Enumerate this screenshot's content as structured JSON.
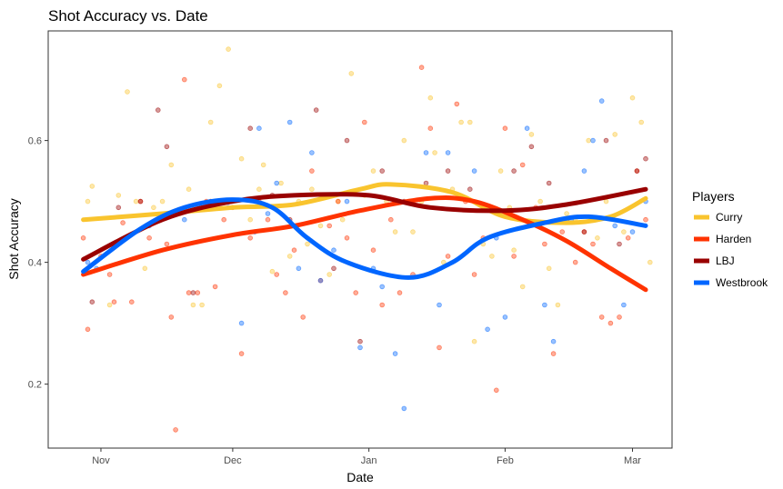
{
  "chart_data": {
    "type": "scatter",
    "title": "Shot Accuracy vs. Date",
    "xlabel": "Date",
    "ylabel": "Shot Accuracy",
    "x_tick_labels": [
      "Nov",
      "Dec",
      "Jan",
      "Feb",
      "Mar"
    ],
    "x_ticks": [
      "2015-11-01",
      "2015-12-01",
      "2016-01-01",
      "2016-02-01",
      "2016-03-01"
    ],
    "xlim": [
      "2015-10-20",
      "2016-03-10"
    ],
    "y_ticks": [
      0.2,
      0.4,
      0.6
    ],
    "y_tick_labels": [
      "0.2",
      "0.4",
      "0.6"
    ],
    "ylim": [
      0.095,
      0.78
    ],
    "grid": false,
    "legend": {
      "title": "Players",
      "position": "right"
    },
    "series": [
      {
        "name": "Curry",
        "color": "#F9C42E",
        "smooth": [
          [
            "2015-10-28",
            0.47
          ],
          [
            "2015-11-15",
            0.48
          ],
          [
            "2015-12-01",
            0.49
          ],
          [
            "2015-12-15",
            0.495
          ],
          [
            "2015-12-30",
            0.52
          ],
          [
            "2016-01-06",
            0.528
          ],
          [
            "2016-01-20",
            0.515
          ],
          [
            "2016-02-01",
            0.475
          ],
          [
            "2016-02-15",
            0.465
          ],
          [
            "2016-02-25",
            0.475
          ],
          [
            "2016-03-04",
            0.505
          ]
        ],
        "points": [
          [
            "2015-10-29",
            0.5
          ],
          [
            "2015-10-30",
            0.525
          ],
          [
            "2015-11-03",
            0.33
          ],
          [
            "2015-11-05",
            0.51
          ],
          [
            "2015-11-07",
            0.68
          ],
          [
            "2015-11-09",
            0.5
          ],
          [
            "2015-11-11",
            0.39
          ],
          [
            "2015-11-13",
            0.49
          ],
          [
            "2015-11-15",
            0.5
          ],
          [
            "2015-11-17",
            0.56
          ],
          [
            "2015-11-19",
            0.48
          ],
          [
            "2015-11-21",
            0.52
          ],
          [
            "2015-11-22",
            0.33
          ],
          [
            "2015-11-24",
            0.33
          ],
          [
            "2015-11-26",
            0.63
          ],
          [
            "2015-11-28",
            0.69
          ],
          [
            "2015-11-30",
            0.75
          ],
          [
            "2015-12-03",
            0.57
          ],
          [
            "2015-12-05",
            0.47
          ],
          [
            "2015-12-07",
            0.52
          ],
          [
            "2015-12-08",
            0.56
          ],
          [
            "2015-12-10",
            0.385
          ],
          [
            "2015-12-12",
            0.53
          ],
          [
            "2015-12-14",
            0.41
          ],
          [
            "2015-12-16",
            0.5
          ],
          [
            "2015-12-18",
            0.43
          ],
          [
            "2015-12-19",
            0.52
          ],
          [
            "2015-12-21",
            0.46
          ],
          [
            "2015-12-23",
            0.38
          ],
          [
            "2015-12-25",
            0.5
          ],
          [
            "2015-12-26",
            0.47
          ],
          [
            "2015-12-28",
            0.71
          ],
          [
            "2015-12-31",
            0.51
          ],
          [
            "2016-01-02",
            0.55
          ],
          [
            "2016-01-05",
            0.5
          ],
          [
            "2016-01-07",
            0.45
          ],
          [
            "2016-01-09",
            0.6
          ],
          [
            "2016-01-11",
            0.45
          ],
          [
            "2016-01-13",
            0.5
          ],
          [
            "2016-01-15",
            0.67
          ],
          [
            "2016-01-16",
            0.58
          ],
          [
            "2016-01-18",
            0.4
          ],
          [
            "2016-01-20",
            0.52
          ],
          [
            "2016-01-22",
            0.63
          ],
          [
            "2016-01-24",
            0.63
          ],
          [
            "2016-01-25",
            0.27
          ],
          [
            "2016-01-27",
            0.43
          ],
          [
            "2016-01-29",
            0.41
          ],
          [
            "2016-01-31",
            0.55
          ],
          [
            "2016-02-02",
            0.49
          ],
          [
            "2016-02-03",
            0.42
          ],
          [
            "2016-02-05",
            0.36
          ],
          [
            "2016-02-07",
            0.61
          ],
          [
            "2016-02-09",
            0.5
          ],
          [
            "2016-02-11",
            0.39
          ],
          [
            "2016-02-13",
            0.33
          ],
          [
            "2016-02-15",
            0.48
          ],
          [
            "2016-02-17",
            0.47
          ],
          [
            "2016-02-20",
            0.6
          ],
          [
            "2016-02-22",
            0.44
          ],
          [
            "2016-02-24",
            0.5
          ],
          [
            "2016-02-26",
            0.61
          ],
          [
            "2016-02-28",
            0.45
          ],
          [
            "2016-03-01",
            0.67
          ],
          [
            "2016-03-03",
            0.63
          ],
          [
            "2016-03-05",
            0.4
          ]
        ]
      },
      {
        "name": "Harden",
        "color": "#FF3300",
        "smooth": [
          [
            "2015-10-28",
            0.38
          ],
          [
            "2015-11-15",
            0.42
          ],
          [
            "2015-12-01",
            0.445
          ],
          [
            "2015-12-15",
            0.46
          ],
          [
            "2015-12-30",
            0.485
          ],
          [
            "2016-01-15",
            0.505
          ],
          [
            "2016-01-25",
            0.5
          ],
          [
            "2016-02-05",
            0.47
          ],
          [
            "2016-02-15",
            0.435
          ],
          [
            "2016-02-25",
            0.39
          ],
          [
            "2016-03-04",
            0.355
          ]
        ],
        "points": [
          [
            "2015-10-28",
            0.44
          ],
          [
            "2015-10-29",
            0.29
          ],
          [
            "2015-11-01",
            0.41
          ],
          [
            "2015-11-03",
            0.38
          ],
          [
            "2015-11-04",
            0.335
          ],
          [
            "2015-11-06",
            0.465
          ],
          [
            "2015-11-08",
            0.335
          ],
          [
            "2015-11-10",
            0.5
          ],
          [
            "2015-11-12",
            0.44
          ],
          [
            "2015-11-16",
            0.43
          ],
          [
            "2015-11-17",
            0.31
          ],
          [
            "2015-11-18",
            0.125
          ],
          [
            "2015-11-20",
            0.7
          ],
          [
            "2015-11-21",
            0.35
          ],
          [
            "2015-11-23",
            0.35
          ],
          [
            "2015-11-25",
            0.5
          ],
          [
            "2015-11-27",
            0.36
          ],
          [
            "2015-11-29",
            0.47
          ],
          [
            "2015-12-01",
            0.49
          ],
          [
            "2015-12-03",
            0.25
          ],
          [
            "2015-12-05",
            0.44
          ],
          [
            "2015-12-07",
            0.5
          ],
          [
            "2015-12-09",
            0.47
          ],
          [
            "2015-12-11",
            0.38
          ],
          [
            "2015-12-13",
            0.35
          ],
          [
            "2015-12-15",
            0.42
          ],
          [
            "2015-12-17",
            0.31
          ],
          [
            "2015-12-19",
            0.55
          ],
          [
            "2015-12-21",
            0.37
          ],
          [
            "2015-12-23",
            0.46
          ],
          [
            "2015-12-25",
            0.5
          ],
          [
            "2015-12-27",
            0.44
          ],
          [
            "2015-12-29",
            0.35
          ],
          [
            "2015-12-31",
            0.63
          ],
          [
            "2016-01-02",
            0.42
          ],
          [
            "2016-01-04",
            0.33
          ],
          [
            "2016-01-06",
            0.47
          ],
          [
            "2016-01-08",
            0.35
          ],
          [
            "2016-01-11",
            0.38
          ],
          [
            "2016-01-13",
            0.72
          ],
          [
            "2016-01-15",
            0.62
          ],
          [
            "2016-01-17",
            0.26
          ],
          [
            "2016-01-19",
            0.41
          ],
          [
            "2016-01-21",
            0.66
          ],
          [
            "2016-01-23",
            0.5
          ],
          [
            "2016-01-25",
            0.38
          ],
          [
            "2016-01-27",
            0.44
          ],
          [
            "2016-01-30",
            0.19
          ],
          [
            "2016-02-01",
            0.62
          ],
          [
            "2016-02-03",
            0.41
          ],
          [
            "2016-02-05",
            0.56
          ],
          [
            "2016-02-08",
            0.49
          ],
          [
            "2016-02-10",
            0.43
          ],
          [
            "2016-02-12",
            0.25
          ],
          [
            "2016-02-14",
            0.45
          ],
          [
            "2016-02-17",
            0.4
          ],
          [
            "2016-02-19",
            0.45
          ],
          [
            "2016-02-21",
            0.43
          ],
          [
            "2016-02-23",
            0.31
          ],
          [
            "2016-02-25",
            0.3
          ],
          [
            "2016-02-27",
            0.31
          ],
          [
            "2016-02-29",
            0.44
          ],
          [
            "2016-03-02",
            0.55
          ],
          [
            "2016-03-04",
            0.47
          ]
        ]
      },
      {
        "name": "LBJ",
        "color": "#990000",
        "smooth": [
          [
            "2015-10-28",
            0.405
          ],
          [
            "2015-11-15",
            0.47
          ],
          [
            "2015-12-01",
            0.5
          ],
          [
            "2015-12-15",
            0.51
          ],
          [
            "2016-01-01",
            0.51
          ],
          [
            "2016-01-15",
            0.49
          ],
          [
            "2016-02-01",
            0.485
          ],
          [
            "2016-02-15",
            0.495
          ],
          [
            "2016-03-04",
            0.52
          ]
        ],
        "points": [
          [
            "2015-10-30",
            0.335
          ],
          [
            "2015-11-05",
            0.49
          ],
          [
            "2015-11-10",
            0.5
          ],
          [
            "2015-11-14",
            0.65
          ],
          [
            "2015-11-16",
            0.59
          ],
          [
            "2015-11-22",
            0.35
          ],
          [
            "2015-11-26",
            0.5
          ],
          [
            "2015-12-05",
            0.62
          ],
          [
            "2015-12-10",
            0.51
          ],
          [
            "2015-12-14",
            0.47
          ],
          [
            "2015-12-20",
            0.65
          ],
          [
            "2015-12-24",
            0.39
          ],
          [
            "2015-12-27",
            0.6
          ],
          [
            "2015-12-30",
            0.27
          ],
          [
            "2016-01-04",
            0.55
          ],
          [
            "2016-01-09",
            0.5
          ],
          [
            "2016-01-14",
            0.53
          ],
          [
            "2016-01-19",
            0.55
          ],
          [
            "2016-01-24",
            0.52
          ],
          [
            "2016-01-29",
            0.49
          ],
          [
            "2016-02-03",
            0.55
          ],
          [
            "2016-02-07",
            0.59
          ],
          [
            "2016-02-11",
            0.53
          ],
          [
            "2016-02-15",
            0.47
          ],
          [
            "2016-02-19",
            0.45
          ],
          [
            "2016-02-24",
            0.6
          ],
          [
            "2016-02-27",
            0.43
          ],
          [
            "2016-03-02",
            0.55
          ],
          [
            "2016-03-04",
            0.57
          ]
        ]
      },
      {
        "name": "Westbrook",
        "color": "#0066FF",
        "smooth": [
          [
            "2015-10-28",
            0.385
          ],
          [
            "2015-11-10",
            0.455
          ],
          [
            "2015-11-20",
            0.49
          ],
          [
            "2015-12-01",
            0.503
          ],
          [
            "2015-12-10",
            0.49
          ],
          [
            "2015-12-18",
            0.44
          ],
          [
            "2015-12-27",
            0.4
          ],
          [
            "2016-01-10",
            0.375
          ],
          [
            "2016-01-20",
            0.4
          ],
          [
            "2016-01-28",
            0.44
          ],
          [
            "2016-02-10",
            0.465
          ],
          [
            "2016-02-20",
            0.475
          ],
          [
            "2016-03-04",
            0.46
          ]
        ],
        "points": [
          [
            "2015-10-29",
            0.4
          ],
          [
            "2015-10-31",
            0.39
          ],
          [
            "2015-11-12",
            0.46
          ],
          [
            "2015-11-20",
            0.47
          ],
          [
            "2015-11-30",
            0.49
          ],
          [
            "2015-12-03",
            0.3
          ],
          [
            "2015-12-06",
            0.45
          ],
          [
            "2015-12-07",
            0.62
          ],
          [
            "2015-12-09",
            0.48
          ],
          [
            "2015-12-11",
            0.53
          ],
          [
            "2015-12-14",
            0.63
          ],
          [
            "2015-12-16",
            0.39
          ],
          [
            "2015-12-19",
            0.58
          ],
          [
            "2015-12-21",
            0.37
          ],
          [
            "2015-12-24",
            0.42
          ],
          [
            "2015-12-27",
            0.5
          ],
          [
            "2015-12-30",
            0.26
          ],
          [
            "2016-01-02",
            0.39
          ],
          [
            "2016-01-04",
            0.36
          ],
          [
            "2016-01-07",
            0.25
          ],
          [
            "2016-01-09",
            0.16
          ],
          [
            "2016-01-14",
            0.58
          ],
          [
            "2016-01-17",
            0.33
          ],
          [
            "2016-01-19",
            0.58
          ],
          [
            "2016-01-25",
            0.55
          ],
          [
            "2016-01-28",
            0.29
          ],
          [
            "2016-01-30",
            0.44
          ],
          [
            "2016-02-01",
            0.31
          ],
          [
            "2016-02-06",
            0.62
          ],
          [
            "2016-02-10",
            0.33
          ],
          [
            "2016-02-12",
            0.27
          ],
          [
            "2016-02-16",
            0.47
          ],
          [
            "2016-02-19",
            0.55
          ],
          [
            "2016-02-21",
            0.6
          ],
          [
            "2016-02-23",
            0.665
          ],
          [
            "2016-02-26",
            0.46
          ],
          [
            "2016-02-28",
            0.33
          ],
          [
            "2016-03-01",
            0.45
          ],
          [
            "2016-03-04",
            0.5
          ]
        ]
      }
    ]
  }
}
